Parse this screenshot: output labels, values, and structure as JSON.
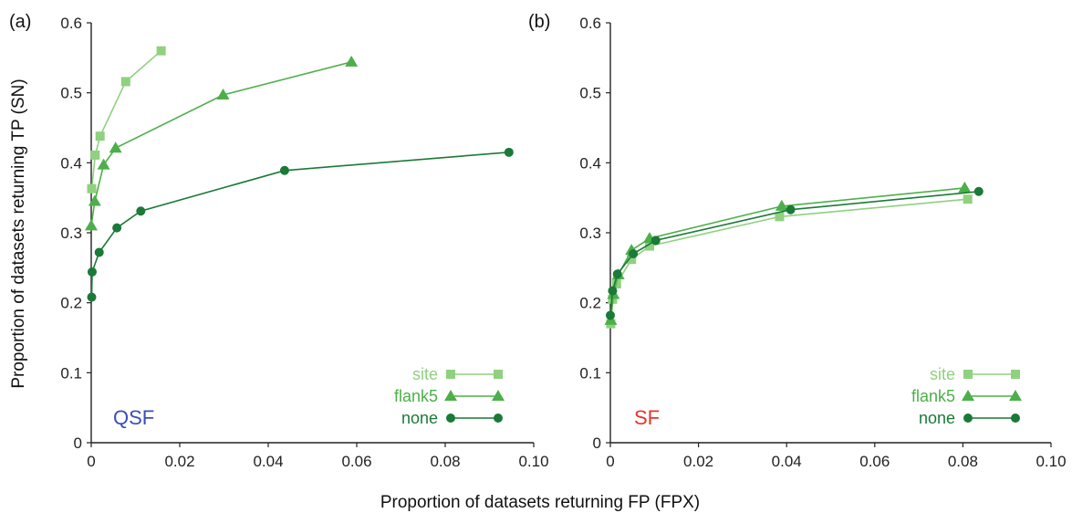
{
  "figure": {
    "xlabel": "Proportion of datasets returning FP (FPX)",
    "ylabel": "Proportion of datasets returning TP (SN)"
  },
  "colors": {
    "site": "#8fd17f",
    "flank5": "#4daf4a",
    "none": "#1a7a37",
    "QSF": "#3b4fb5",
    "SF": "#e8332a"
  },
  "chart_data": [
    {
      "type": "line",
      "panel_label": "(a)",
      "corner_label": "QSF",
      "xlim": [
        0,
        0.1
      ],
      "ylim": [
        0,
        0.6
      ],
      "xticks": [
        "0",
        "0.02",
        "0.04",
        "0.06",
        "0.08",
        "0.10"
      ],
      "yticks": [
        "0",
        "0.1",
        "0.2",
        "0.3",
        "0.4",
        "0.5",
        "0.6"
      ],
      "xtick_values": [
        0,
        0.02,
        0.04,
        0.06,
        0.08,
        0.1
      ],
      "ytick_values": [
        0,
        0.1,
        0.2,
        0.3,
        0.4,
        0.5,
        0.6
      ],
      "grid": false,
      "legend_position": "bottom-right",
      "series": [
        {
          "name": "site",
          "marker": "square",
          "color_key": "site",
          "x": [
            0.0001,
            0.0009,
            0.002,
            0.0078,
            0.0158
          ],
          "y": [
            0.363,
            0.411,
            0.438,
            0.516,
            0.56
          ]
        },
        {
          "name": "flank5",
          "marker": "triangle",
          "color_key": "flank5",
          "x": [
            0.0,
            0.0008,
            0.0028,
            0.0055,
            0.0298,
            0.0588
          ],
          "y": [
            0.31,
            0.345,
            0.397,
            0.421,
            0.497,
            0.544
          ]
        },
        {
          "name": "none",
          "marker": "circle",
          "color_key": "none",
          "x": [
            0.0001,
            0.0002,
            0.0018,
            0.0058,
            0.0112,
            0.0437,
            0.0944
          ],
          "y": [
            0.208,
            0.244,
            0.272,
            0.307,
            0.331,
            0.389,
            0.415
          ]
        }
      ]
    },
    {
      "type": "line",
      "panel_label": "(b)",
      "corner_label": "SF",
      "xlim": [
        0,
        0.1
      ],
      "ylim": [
        0,
        0.6
      ],
      "xticks": [
        "0",
        "0.02",
        "0.04",
        "0.06",
        "0.08",
        "0.10"
      ],
      "yticks": [
        "0",
        "0.1",
        "0.2",
        "0.3",
        "0.4",
        "0.5",
        "0.6"
      ],
      "xtick_values": [
        0,
        0.02,
        0.04,
        0.06,
        0.08,
        0.1
      ],
      "ytick_values": [
        0,
        0.1,
        0.2,
        0.3,
        0.4,
        0.5,
        0.6
      ],
      "grid": false,
      "legend_position": "bottom-right",
      "series": [
        {
          "name": "site",
          "marker": "square",
          "color_key": "site",
          "x": [
            0.0001,
            0.0005,
            0.0014,
            0.0048,
            0.0089,
            0.0384,
            0.0811
          ],
          "y": [
            0.17,
            0.205,
            0.227,
            0.262,
            0.281,
            0.323,
            0.348
          ]
        },
        {
          "name": "flank5",
          "marker": "triangle",
          "color_key": "flank5",
          "x": [
            0.0001,
            0.0007,
            0.0018,
            0.0048,
            0.0089,
            0.0389,
            0.0804
          ],
          "y": [
            0.175,
            0.212,
            0.24,
            0.275,
            0.292,
            0.338,
            0.364
          ]
        },
        {
          "name": "none",
          "marker": "circle",
          "color_key": "none",
          "x": [
            0.0,
            0.0005,
            0.0016,
            0.0052,
            0.0103,
            0.0409,
            0.0836
          ],
          "y": [
            0.182,
            0.217,
            0.241,
            0.27,
            0.289,
            0.333,
            0.359
          ]
        }
      ]
    }
  ]
}
